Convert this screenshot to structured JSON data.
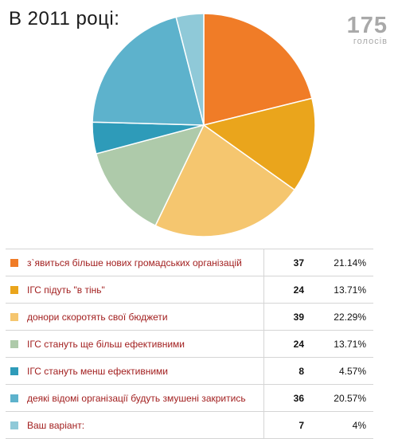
{
  "header": {
    "title": "В 2011 році:"
  },
  "total": {
    "value": "175",
    "label": "голосів"
  },
  "chart_data": {
    "type": "pie",
    "title": "В 2011 році:",
    "total_votes": 175,
    "slices": [
      {
        "label": "з`явиться більше нових громадських організацій",
        "count": 37,
        "percent": "21.14%",
        "color": "#f07c27"
      },
      {
        "label": "ІГС підуть \"в тінь\"",
        "count": 24,
        "percent": "13.71%",
        "color": "#eaa51c"
      },
      {
        "label": "донори скоротять свої бюджети",
        "count": 39,
        "percent": "22.29%",
        "color": "#f5c66f"
      },
      {
        "label": "ІГС стануть ще більш ефективними",
        "count": 24,
        "percent": "13.71%",
        "color": "#aecaaa"
      },
      {
        "label": "ІГС стануть менш ефективними",
        "count": 8,
        "percent": "4.57%",
        "color": "#2e9bb9"
      },
      {
        "label": "деякі відомі організації будуть змушені закритись",
        "count": 36,
        "percent": "20.57%",
        "color": "#5db2cc"
      },
      {
        "label": "Ваш варіант:",
        "count": 7,
        "percent": "4%",
        "color": "#8fc9d8"
      }
    ]
  }
}
